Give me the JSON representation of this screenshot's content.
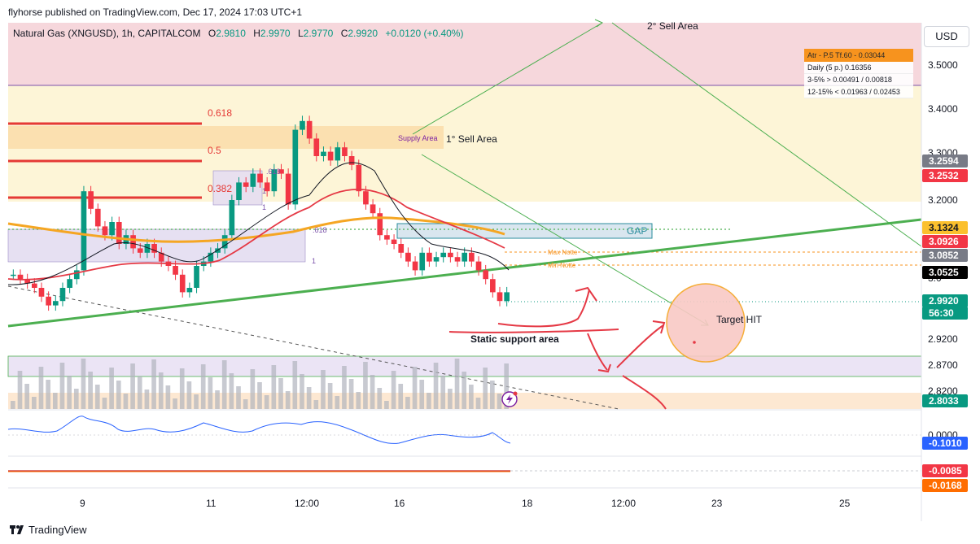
{
  "header": {
    "publish_line": "flyhorse published on TradingView.com, Dec 17, 2024 17:03 UTC+1"
  },
  "legend": {
    "symbol": "Natural Gas (XNGUSD), 1h, CAPITALCOM",
    "open_label": "O",
    "open": "2.9810",
    "high_label": "H",
    "high": "2.9970",
    "low_label": "L",
    "low": "2.9770",
    "close_label": "C",
    "close": "2.9920",
    "change": "+0.0120 (+0.40%)"
  },
  "currency_button": "USD",
  "atr_panel": {
    "header": "Atr - P.5 Tf.60 - 0.03044",
    "rows": [
      "Daily (5 p.) 0.16356",
      "3-5% > 0.00491 / 0.00818",
      "12-15% < 0.01963 / 0.02453"
    ]
  },
  "annotations": {
    "sell_area_2": "2° Sell Area",
    "sell_area_1": "1° Sell Area",
    "supply_area": "Supply Area",
    "gap": "GAP",
    "max_notte": "Max Notte",
    "min_notte": "Min Notte",
    "target_hit": "Target HIT",
    "static_support": "Static support area",
    "fib_618": "0.618",
    "fib_05": "0.5",
    "fib_382": "0.382",
    "small_618": ".618",
    "small_618b": ".618",
    "small_1a": "1",
    "small_1b": "1",
    "small_1c": "1"
  },
  "price_scale": {
    "ticks": [
      "3.5000",
      "3.4000",
      "3.3000",
      "3.2000",
      "2.9200",
      "2.8700",
      "2.8200",
      "0.0000"
    ],
    "tags": [
      {
        "label": "3.2594",
        "color": "#787b86"
      },
      {
        "label": "3.2532",
        "color": "#f23645"
      },
      {
        "label": "3.1324",
        "color": "#fbc02d",
        "text_color": "#131722"
      },
      {
        "label": "3.0926",
        "color": "#f23645"
      },
      {
        "label": "3.0852",
        "color": "#787b86"
      },
      {
        "label": "3.0525",
        "color": "#000000"
      },
      {
        "label": "2.9920",
        "color": "#089981"
      },
      {
        "label": "56:30",
        "color": "#089981"
      },
      {
        "label": "2.8033",
        "color": "#089981"
      },
      {
        "label": "-0.1010",
        "color": "#2962ff"
      },
      {
        "label": "-0.0085",
        "color": "#f23645"
      },
      {
        "label": "-0.0168",
        "color": "#ff6d00"
      }
    ],
    "partial_tick": "3.0"
  },
  "time_axis": [
    "9",
    "11",
    "12:00",
    "16",
    "18",
    "12:00",
    "23",
    "25"
  ],
  "footer": {
    "brand": "TradingView"
  },
  "chart_data": {
    "type": "line",
    "title": "Natural Gas (XNGUSD), 1h, CAPITALCOM",
    "ylim": [
      2.78,
      3.56
    ],
    "price_series_approx": [
      3.03,
      3.02,
      3.01,
      3.0,
      2.98,
      2.96,
      2.97,
      3.0,
      3.02,
      3.04,
      3.22,
      3.18,
      3.14,
      3.12,
      3.15,
      3.1,
      3.12,
      3.09,
      3.08,
      3.1,
      3.08,
      3.06,
      3.05,
      3.03,
      2.99,
      3.0,
      3.05,
      3.06,
      3.08,
      3.09,
      3.12,
      3.2,
      3.24,
      3.23,
      3.26,
      3.24,
      3.22,
      3.27,
      3.26,
      3.19,
      3.36,
      3.38,
      3.34,
      3.3,
      3.31,
      3.29,
      3.32,
      3.3,
      3.28,
      3.22,
      3.19,
      3.17,
      3.12,
      3.11,
      3.1,
      3.08,
      3.06,
      3.04,
      3.08,
      3.06,
      3.07,
      3.08,
      3.07,
      3.06,
      3.08,
      3.06,
      3.04,
      3.02,
      2.99,
      2.97,
      2.99
    ],
    "levels": {
      "current": 2.992,
      "gap_zone": [
        3.11,
        3.132
      ],
      "max_notte": 3.085,
      "min_notte": 3.068,
      "support_zone": [
        2.85,
        2.89
      ],
      "supply_zone": [
        3.3,
        3.35
      ]
    }
  }
}
